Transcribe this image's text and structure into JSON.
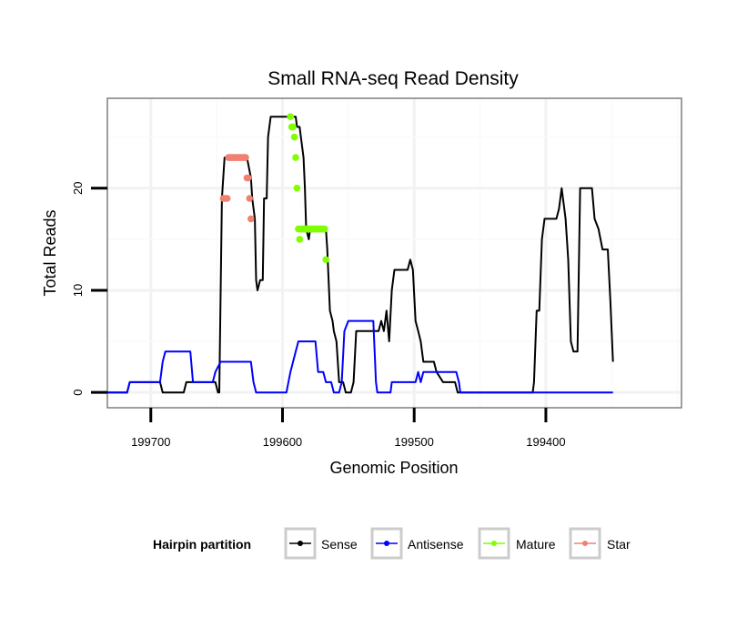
{
  "chart_data": {
    "type": "line",
    "title": "Small RNA-seq Read Density",
    "xlabel": "Genomic Position",
    "ylabel": "Total Reads",
    "xlim": [
      199733,
      199297
    ],
    "x_reversed": true,
    "ylim": [
      -1.5,
      28.8
    ],
    "x_ticks": [
      199700,
      199600,
      199500,
      199400
    ],
    "y_ticks": [
      0,
      10,
      20
    ],
    "grid": true,
    "legend": {
      "title": "Hairpin partition",
      "placement": "bottom",
      "entries": [
        {
          "name": "Sense",
          "color": "#000000"
        },
        {
          "name": "Antisense",
          "color": "#0000ff"
        },
        {
          "name": "Mature",
          "color": "#7fff00"
        },
        {
          "name": "Star",
          "color": "#f08070"
        }
      ]
    },
    "series": [
      {
        "name": "Sense",
        "color": "#000000",
        "style": "line",
        "points": [
          [
            199733,
            0
          ],
          [
            199718,
            0
          ],
          [
            199716,
            1
          ],
          [
            199693,
            1
          ],
          [
            199691,
            0
          ],
          [
            199675,
            0
          ],
          [
            199673,
            1
          ],
          [
            199651,
            1
          ],
          [
            199649,
            0
          ],
          [
            199648,
            0
          ],
          [
            199646,
            19
          ],
          [
            199644,
            23
          ],
          [
            199627,
            23
          ],
          [
            199624,
            21
          ],
          [
            199623,
            19
          ],
          [
            199621,
            17
          ],
          [
            199620,
            11
          ],
          [
            199619,
            10
          ],
          [
            199617,
            11
          ],
          [
            199615,
            11
          ],
          [
            199614,
            19
          ],
          [
            199612,
            19
          ],
          [
            199611,
            25
          ],
          [
            199609,
            27
          ],
          [
            199590,
            27
          ],
          [
            199589,
            26
          ],
          [
            199587,
            26
          ],
          [
            199586,
            25
          ],
          [
            199584,
            23
          ],
          [
            199583,
            20
          ],
          [
            199582,
            16
          ],
          [
            199580,
            15
          ],
          [
            199579,
            16
          ],
          [
            199567,
            16
          ],
          [
            199566,
            14
          ],
          [
            199564,
            8
          ],
          [
            199562,
            7
          ],
          [
            199561,
            6
          ],
          [
            199559,
            5
          ],
          [
            199557,
            1
          ],
          [
            199554,
            1
          ],
          [
            199552,
            0
          ],
          [
            199548,
            0
          ],
          [
            199546,
            1
          ],
          [
            199544,
            6
          ],
          [
            199527,
            6
          ],
          [
            199525,
            7
          ],
          [
            199523,
            6
          ],
          [
            199521,
            8
          ],
          [
            199519,
            5
          ],
          [
            199517,
            10
          ],
          [
            199515,
            12
          ],
          [
            199505,
            12
          ],
          [
            199503,
            13
          ],
          [
            199501,
            12
          ],
          [
            199499,
            7
          ],
          [
            199497,
            6
          ],
          [
            199495,
            5
          ],
          [
            199493,
            3
          ],
          [
            199485,
            3
          ],
          [
            199483,
            2
          ],
          [
            199478,
            1
          ],
          [
            199469,
            1
          ],
          [
            199467,
            0
          ],
          [
            199410,
            0
          ],
          [
            199409,
            1
          ],
          [
            199407,
            8
          ],
          [
            199405,
            8
          ],
          [
            199403,
            15
          ],
          [
            199401,
            17
          ],
          [
            199392,
            17
          ],
          [
            199390,
            18
          ],
          [
            199388,
            20
          ],
          [
            199385,
            17
          ],
          [
            199383,
            13
          ],
          [
            199381,
            5
          ],
          [
            199379,
            4
          ],
          [
            199376,
            4
          ],
          [
            199374,
            20
          ],
          [
            199365,
            20
          ],
          [
            199363,
            17
          ],
          [
            199360,
            16
          ],
          [
            199357,
            14
          ],
          [
            199353,
            14
          ],
          [
            199351,
            9
          ],
          [
            199349,
            3
          ]
        ]
      },
      {
        "name": "Antisense",
        "color": "#0000ff",
        "style": "line",
        "points": [
          [
            199733,
            0
          ],
          [
            199718,
            0
          ],
          [
            199716,
            1
          ],
          [
            199693,
            1
          ],
          [
            199691,
            3
          ],
          [
            199689,
            4
          ],
          [
            199670,
            4
          ],
          [
            199668,
            1
          ],
          [
            199653,
            1
          ],
          [
            199651,
            2
          ],
          [
            199647,
            3
          ],
          [
            199624,
            3
          ],
          [
            199622,
            1
          ],
          [
            199620,
            0
          ],
          [
            199597,
            0
          ],
          [
            199594,
            2
          ],
          [
            199592,
            3
          ],
          [
            199590,
            4
          ],
          [
            199588,
            5
          ],
          [
            199575,
            5
          ],
          [
            199573,
            2
          ],
          [
            199569,
            2
          ],
          [
            199567,
            1
          ],
          [
            199563,
            1
          ],
          [
            199561,
            0
          ],
          [
            199557,
            0
          ],
          [
            199555,
            1
          ],
          [
            199553,
            6
          ],
          [
            199550,
            7
          ],
          [
            199531,
            7
          ],
          [
            199529,
            1
          ],
          [
            199528,
            0
          ],
          [
            199518,
            0
          ],
          [
            199517,
            1
          ],
          [
            199499,
            1
          ],
          [
            199497,
            2
          ],
          [
            199495,
            1
          ],
          [
            199493,
            2
          ],
          [
            199468,
            2
          ],
          [
            199466,
            1
          ],
          [
            199465,
            0
          ],
          [
            199349,
            0
          ]
        ]
      },
      {
        "name": "Mature",
        "color": "#7fff00",
        "style": "points",
        "points": [
          [
            199594,
            27
          ],
          [
            199593,
            26
          ],
          [
            199592,
            26
          ],
          [
            199591,
            25
          ],
          [
            199590,
            23
          ],
          [
            199589,
            20
          ],
          [
            199588,
            16
          ],
          [
            199587,
            15
          ],
          [
            199586,
            16
          ],
          [
            199585,
            16
          ],
          [
            199584,
            16
          ],
          [
            199583,
            16
          ],
          [
            199582,
            16
          ],
          [
            199581,
            16
          ],
          [
            199580,
            16
          ],
          [
            199579,
            16
          ],
          [
            199578,
            16
          ],
          [
            199577,
            16
          ],
          [
            199576,
            16
          ],
          [
            199575,
            16
          ],
          [
            199574,
            16
          ],
          [
            199573,
            16
          ],
          [
            199572,
            16
          ],
          [
            199571,
            16
          ],
          [
            199570,
            16
          ],
          [
            199569,
            16
          ],
          [
            199568,
            16
          ],
          [
            199567,
            13
          ]
        ]
      },
      {
        "name": "Star",
        "color": "#f08070",
        "style": "points",
        "points": [
          [
            199645,
            19
          ],
          [
            199644,
            19
          ],
          [
            199643,
            19
          ],
          [
            199642,
            19
          ],
          [
            199641,
            23
          ],
          [
            199640,
            23
          ],
          [
            199639,
            23
          ],
          [
            199638,
            23
          ],
          [
            199637,
            23
          ],
          [
            199636,
            23
          ],
          [
            199635,
            23
          ],
          [
            199634,
            23
          ],
          [
            199633,
            23
          ],
          [
            199632,
            23
          ],
          [
            199631,
            23
          ],
          [
            199630,
            23
          ],
          [
            199629,
            23
          ],
          [
            199628,
            23
          ],
          [
            199627,
            21
          ],
          [
            199626,
            21
          ],
          [
            199625,
            19
          ],
          [
            199624,
            17
          ]
        ]
      }
    ]
  }
}
